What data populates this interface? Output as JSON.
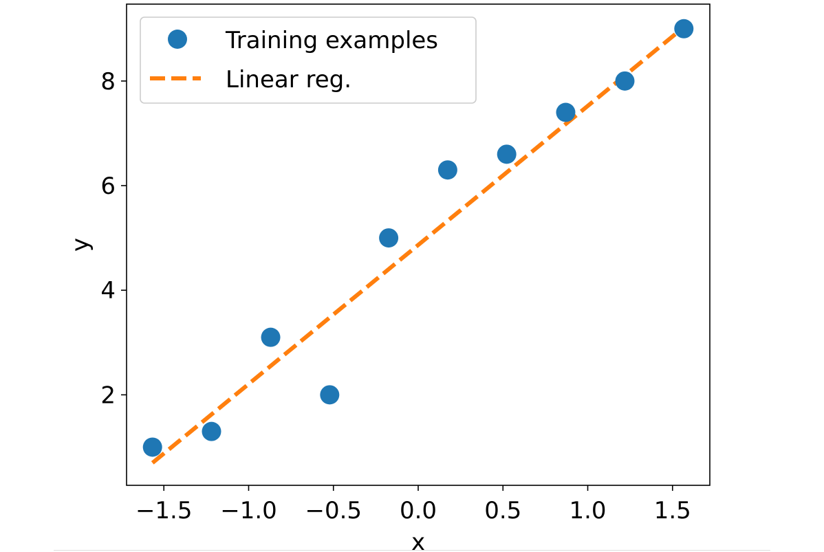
{
  "chart_data": {
    "type": "scatter",
    "xlabel": "x",
    "ylabel": "y",
    "xlim": [
      -1.72,
      1.72
    ],
    "ylim": [
      0.27,
      9.47
    ],
    "xticks": [
      -1.5,
      -1.0,
      -0.5,
      0.0,
      0.5,
      1.0,
      1.5
    ],
    "xtick_labels": [
      "−1.5",
      "−1.0",
      "−0.5",
      "0.0",
      "0.5",
      "1.0",
      "1.5"
    ],
    "yticks": [
      2,
      4,
      6,
      8
    ],
    "ytick_labels": [
      "2",
      "4",
      "6",
      "8"
    ],
    "grid": false,
    "legend_position": "upper-left",
    "series": [
      {
        "name": "Training examples",
        "kind": "scatter",
        "color": "#1f77b4",
        "x": [
          -1.567,
          -1.219,
          -0.87,
          -0.522,
          -0.174,
          0.174,
          0.522,
          0.87,
          1.219,
          1.567
        ],
        "y": [
          1.0,
          1.3,
          3.1,
          2.0,
          5.0,
          6.3,
          6.6,
          7.4,
          8.0,
          9.0
        ]
      },
      {
        "name": "Linear reg.",
        "kind": "line",
        "style": "dashed",
        "color": "#ff7f0e",
        "x": [
          -1.567,
          1.567
        ],
        "y": [
          0.7,
          9.03
        ]
      }
    ]
  }
}
